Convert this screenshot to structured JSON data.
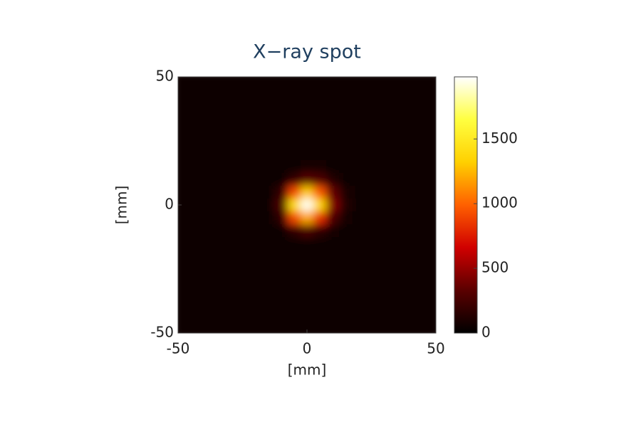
{
  "chart_data": {
    "type": "heatmap",
    "title": "X−ray spot",
    "xlabel": "[mm]",
    "ylabel": "[mm]",
    "xlim": [
      -50,
      50
    ],
    "ylim": [
      -50,
      50
    ],
    "xticks": [
      -50,
      0,
      50
    ],
    "yticks": [
      -50,
      0,
      50
    ],
    "x": [
      -50,
      -45,
      -40,
      -35,
      -30,
      -25,
      -20,
      -15,
      -10,
      -5,
      0,
      5,
      10,
      15,
      20,
      25,
      30,
      35,
      40,
      45,
      50
    ],
    "y": [
      50,
      45,
      40,
      35,
      30,
      25,
      20,
      15,
      10,
      5,
      0,
      -5,
      -10,
      -15,
      -20,
      -25,
      -30,
      -35,
      -40,
      -45,
      -50
    ],
    "z": [
      [
        30,
        30,
        30,
        30,
        30,
        30,
        30,
        30,
        30,
        30,
        30,
        30,
        30,
        30,
        30,
        30,
        30,
        30,
        30,
        30,
        30
      ],
      [
        30,
        30,
        30,
        30,
        30,
        30,
        30,
        30,
        30,
        30,
        30,
        30,
        30,
        30,
        30,
        30,
        30,
        30,
        30,
        30,
        30
      ],
      [
        30,
        30,
        30,
        30,
        30,
        30,
        30,
        30,
        30,
        30,
        30,
        30,
        30,
        30,
        30,
        30,
        30,
        30,
        30,
        30,
        30
      ],
      [
        30,
        30,
        30,
        30,
        30,
        30,
        30,
        30,
        30,
        30,
        30,
        30,
        30,
        30,
        30,
        30,
        30,
        30,
        30,
        30,
        30
      ],
      [
        30,
        30,
        30,
        30,
        30,
        30,
        30,
        30,
        30,
        30,
        30,
        30,
        30,
        30,
        30,
        30,
        30,
        30,
        30,
        30,
        30
      ],
      [
        30,
        30,
        30,
        30,
        30,
        30,
        30,
        30,
        30,
        30,
        30,
        30,
        30,
        30,
        30,
        30,
        30,
        30,
        30,
        30,
        30
      ],
      [
        30,
        30,
        30,
        30,
        30,
        30,
        30,
        30,
        30,
        30,
        30,
        30,
        30,
        30,
        30,
        30,
        30,
        30,
        30,
        30,
        30
      ],
      [
        30,
        30,
        30,
        30,
        30,
        30,
        30,
        30,
        30,
        60,
        80,
        80,
        50,
        30,
        30,
        30,
        30,
        30,
        30,
        30,
        30
      ],
      [
        30,
        30,
        30,
        30,
        30,
        30,
        30,
        30,
        60,
        180,
        320,
        280,
        130,
        60,
        30,
        30,
        30,
        30,
        30,
        30,
        30
      ],
      [
        30,
        30,
        30,
        30,
        30,
        30,
        30,
        30,
        180,
        900,
        1300,
        950,
        350,
        110,
        30,
        30,
        30,
        30,
        30,
        30,
        30
      ],
      [
        30,
        30,
        30,
        30,
        30,
        30,
        30,
        30,
        280,
        1400,
        1950,
        1350,
        450,
        130,
        30,
        30,
        30,
        30,
        30,
        30,
        30
      ],
      [
        30,
        30,
        30,
        30,
        30,
        30,
        30,
        30,
        170,
        900,
        1200,
        820,
        280,
        90,
        30,
        30,
        30,
        30,
        30,
        30,
        30
      ],
      [
        30,
        30,
        30,
        30,
        30,
        30,
        30,
        30,
        30,
        170,
        270,
        170,
        80,
        30,
        30,
        30,
        30,
        30,
        30,
        30,
        30
      ],
      [
        30,
        30,
        30,
        30,
        30,
        30,
        30,
        30,
        30,
        30,
        60,
        50,
        30,
        30,
        30,
        30,
        30,
        30,
        30,
        30,
        30
      ],
      [
        30,
        30,
        30,
        30,
        30,
        30,
        30,
        30,
        30,
        30,
        30,
        30,
        30,
        30,
        30,
        30,
        30,
        30,
        30,
        30,
        30
      ],
      [
        30,
        30,
        30,
        30,
        30,
        30,
        30,
        30,
        30,
        30,
        30,
        30,
        30,
        30,
        30,
        30,
        30,
        30,
        30,
        30,
        30
      ],
      [
        30,
        30,
        30,
        30,
        30,
        30,
        30,
        30,
        30,
        30,
        30,
        30,
        30,
        30,
        30,
        30,
        30,
        30,
        30,
        30,
        30
      ],
      [
        30,
        30,
        30,
        30,
        30,
        30,
        30,
        30,
        30,
        30,
        30,
        30,
        30,
        30,
        30,
        30,
        30,
        30,
        30,
        30,
        30
      ],
      [
        30,
        30,
        30,
        30,
        30,
        30,
        30,
        30,
        30,
        30,
        30,
        30,
        30,
        30,
        30,
        30,
        30,
        30,
        30,
        30,
        30
      ],
      [
        30,
        30,
        30,
        30,
        30,
        30,
        30,
        30,
        30,
        30,
        30,
        30,
        30,
        30,
        30,
        30,
        30,
        30,
        30,
        30,
        30
      ],
      [
        30,
        30,
        30,
        30,
        30,
        30,
        30,
        30,
        30,
        30,
        30,
        30,
        30,
        30,
        30,
        30,
        30,
        30,
        30,
        30,
        30
      ]
    ],
    "clim": [
      0,
      1980
    ],
    "cticks": [
      0,
      500,
      1000,
      1500
    ],
    "colormap": [
      "#000000",
      "#5a0000",
      "#d00000",
      "#ff6000",
      "#ffd000",
      "#ffff40",
      "#ffffff"
    ]
  }
}
